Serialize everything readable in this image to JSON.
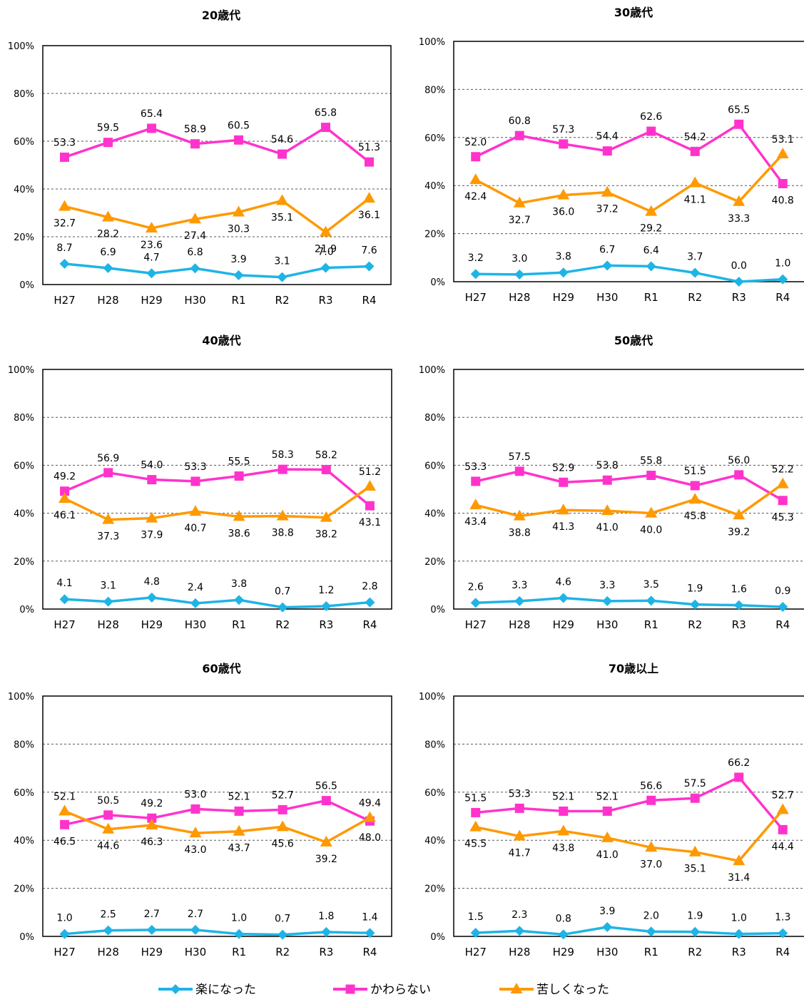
{
  "legend": [
    {
      "name": "楽になった",
      "color": "#1EB4E6",
      "marker": "diamond"
    },
    {
      "name": "かわらない",
      "color": "#FF33CC",
      "marker": "square"
    },
    {
      "name": "苦しくなった",
      "color": "#FF9900",
      "marker": "triangle"
    }
  ],
  "chart_data": [
    {
      "type": "line",
      "title": "20歳代",
      "categories": [
        "H27",
        "H28",
        "H29",
        "H30",
        "R1",
        "R2",
        "R3",
        "R4"
      ],
      "y_ticks": [
        "0%",
        "20%",
        "40%",
        "60%",
        "80%",
        "100%"
      ],
      "ylim": [
        0,
        100
      ],
      "grid": "horizontal-dashed",
      "legend": "bottom",
      "series": [
        {
          "name": "楽になった",
          "values": [
            8.7,
            6.9,
            4.7,
            6.8,
            3.9,
            3.1,
            7.0,
            7.6
          ]
        },
        {
          "name": "かわらない",
          "values": [
            53.3,
            59.5,
            65.4,
            58.9,
            60.5,
            54.6,
            65.8,
            51.3
          ]
        },
        {
          "name": "苦しくなった",
          "values": [
            32.7,
            28.2,
            23.6,
            27.4,
            30.3,
            35.1,
            21.9,
            36.1
          ]
        }
      ]
    },
    {
      "type": "line",
      "title": "30歳代",
      "categories": [
        "H27",
        "H28",
        "H29",
        "H30",
        "R1",
        "R2",
        "R3",
        "R4"
      ],
      "y_ticks": [
        "0%",
        "20%",
        "40%",
        "60%",
        "80%",
        "100%"
      ],
      "ylim": [
        0,
        100
      ],
      "grid": "horizontal-dashed",
      "legend": "bottom",
      "series": [
        {
          "name": "楽になった",
          "values": [
            3.2,
            3.0,
            3.8,
            6.7,
            6.4,
            3.7,
            0.0,
            1.0
          ]
        },
        {
          "name": "かわらない",
          "values": [
            52.0,
            60.8,
            57.3,
            54.4,
            62.6,
            54.2,
            65.5,
            40.8
          ]
        },
        {
          "name": "苦しくなった",
          "values": [
            42.4,
            32.7,
            36.0,
            37.2,
            29.2,
            41.1,
            33.3,
            53.1
          ]
        }
      ]
    },
    {
      "type": "line",
      "title": "40歳代",
      "categories": [
        "H27",
        "H28",
        "H29",
        "H30",
        "R1",
        "R2",
        "R3",
        "R4"
      ],
      "y_ticks": [
        "0%",
        "20%",
        "40%",
        "60%",
        "80%",
        "100%"
      ],
      "ylim": [
        0,
        100
      ],
      "grid": "horizontal-dashed",
      "legend": "bottom",
      "series": [
        {
          "name": "楽になった",
          "values": [
            4.1,
            3.1,
            4.8,
            2.4,
            3.8,
            0.7,
            1.2,
            2.8
          ]
        },
        {
          "name": "かわらない",
          "values": [
            49.2,
            56.9,
            54.0,
            53.3,
            55.5,
            58.3,
            58.2,
            43.1
          ]
        },
        {
          "name": "苦しくなった",
          "values": [
            46.1,
            37.3,
            37.9,
            40.7,
            38.6,
            38.8,
            38.2,
            51.2
          ]
        }
      ]
    },
    {
      "type": "line",
      "title": "50歳代",
      "categories": [
        "H27",
        "H28",
        "H29",
        "H30",
        "R1",
        "R2",
        "R3",
        "R4"
      ],
      "y_ticks": [
        "0%",
        "20%",
        "40%",
        "60%",
        "80%",
        "100%"
      ],
      "ylim": [
        0,
        100
      ],
      "grid": "horizontal-dashed",
      "legend": "bottom",
      "series": [
        {
          "name": "楽になった",
          "values": [
            2.6,
            3.3,
            4.6,
            3.3,
            3.5,
            1.9,
            1.6,
            0.9
          ]
        },
        {
          "name": "かわらない",
          "values": [
            53.3,
            57.5,
            52.9,
            53.8,
            55.8,
            51.5,
            56.0,
            45.3
          ]
        },
        {
          "name": "苦しくなった",
          "values": [
            43.4,
            38.8,
            41.3,
            41.0,
            40.0,
            45.8,
            39.2,
            52.2
          ]
        }
      ]
    },
    {
      "type": "line",
      "title": "60歳代",
      "categories": [
        "H27",
        "H28",
        "H29",
        "H30",
        "R1",
        "R2",
        "R3",
        "R4"
      ],
      "y_ticks": [
        "0%",
        "20%",
        "40%",
        "60%",
        "80%",
        "100%"
      ],
      "ylim": [
        0,
        100
      ],
      "grid": "horizontal-dashed",
      "legend": "bottom",
      "series": [
        {
          "name": "楽になった",
          "values": [
            1.0,
            2.5,
            2.7,
            2.7,
            1.0,
            0.7,
            1.8,
            1.4
          ]
        },
        {
          "name": "かわらない",
          "values": [
            46.5,
            50.5,
            49.2,
            53.0,
            52.1,
            52.7,
            56.5,
            48.0
          ]
        },
        {
          "name": "苦しくなった",
          "values": [
            52.1,
            44.6,
            46.3,
            43.0,
            43.7,
            45.6,
            39.2,
            49.4
          ]
        }
      ]
    },
    {
      "type": "line",
      "title": "70歳以上",
      "categories": [
        "H27",
        "H28",
        "H29",
        "H30",
        "R1",
        "R2",
        "R3",
        "R4"
      ],
      "y_ticks": [
        "0%",
        "20%",
        "40%",
        "60%",
        "80%",
        "100%"
      ],
      "ylim": [
        0,
        100
      ],
      "grid": "horizontal-dashed",
      "legend": "bottom",
      "series": [
        {
          "name": "楽になった",
          "values": [
            1.5,
            2.3,
            0.8,
            3.9,
            2.0,
            1.9,
            1.0,
            1.3
          ]
        },
        {
          "name": "かわらない",
          "values": [
            51.5,
            53.3,
            52.1,
            52.1,
            56.6,
            57.5,
            66.2,
            44.4
          ]
        },
        {
          "name": "苦しくなった",
          "values": [
            45.5,
            41.7,
            43.8,
            41.0,
            37.0,
            35.1,
            31.4,
            52.7
          ]
        }
      ]
    }
  ]
}
